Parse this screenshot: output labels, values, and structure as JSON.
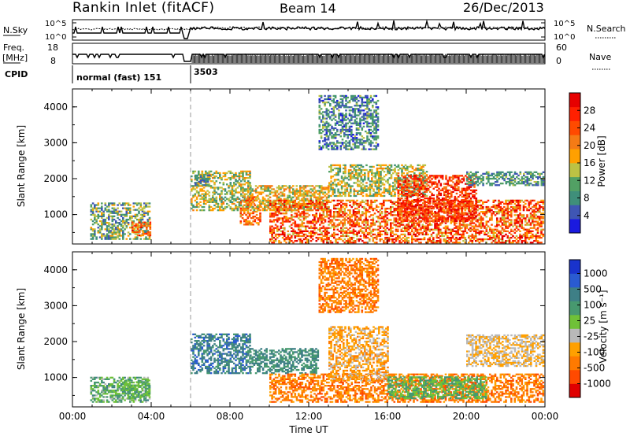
{
  "header": {
    "title": "Rankin Inlet (fitACF)",
    "beam": "Beam 14",
    "date": "26/Dec/2013"
  },
  "status_panels": {
    "nsky_label": "N.Sky",
    "nsky_ticks": [
      "10^5",
      "10^0"
    ],
    "nsearch_label": "N.Search",
    "nsearch_ticks": [
      "10^5",
      "10^0"
    ],
    "freq_label": "Freq.",
    "freq_unit": "[MHz]",
    "freq_ticks": [
      "18",
      "8"
    ],
    "nave_label": "Nave",
    "nave_ticks": [
      "60",
      "0"
    ],
    "cpid_label": "CPID",
    "cpid_segments": [
      {
        "label": "normal (fast) 151",
        "start_hour": 0,
        "end_hour": 6
      },
      {
        "label": "3503",
        "start_hour": 6,
        "end_hour": 24
      }
    ]
  },
  "chart_data": [
    {
      "type": "heatmap",
      "name": "power",
      "ylabel": "Slant Range [km]",
      "xlabel": "",
      "xlim": [
        0,
        24
      ],
      "ylim": [
        180,
        4500
      ],
      "yticks": [
        "1000",
        "2000",
        "3000",
        "4000"
      ],
      "yticks_values": [
        1000,
        2000,
        3000,
        4000
      ],
      "xticks": [
        "00:00",
        "04:00",
        "08:00",
        "12:00",
        "16:00",
        "20:00",
        "00:00"
      ],
      "colorbar": {
        "label": "Power [dB]",
        "ticks": [
          "4",
          "8",
          "12",
          "16",
          "20",
          "24",
          "28"
        ],
        "tick_values": [
          4,
          8,
          12,
          16,
          20,
          24,
          28
        ],
        "range": [
          0,
          32
        ],
        "colors": [
          "#1a1adf",
          "#3f56b4",
          "#3f8f7a",
          "#52a064",
          "#bcc244",
          "#ffa000",
          "#f57b15",
          "#ff4a00",
          "#ff2000",
          "#e60000"
        ]
      },
      "regions": [
        {
          "t": [
            0.9,
            3.9
          ],
          "r": [
            300,
            1300
          ],
          "v": [
            4,
            18
          ]
        },
        {
          "t": [
            3.0,
            3.9
          ],
          "r": [
            400,
            800
          ],
          "v": [
            14,
            30
          ]
        },
        {
          "t": [
            6.0,
            9.0
          ],
          "r": [
            1100,
            2200
          ],
          "v": [
            8,
            20
          ]
        },
        {
          "t": [
            6.2,
            7.0
          ],
          "r": [
            1800,
            2100
          ],
          "v": [
            4,
            10
          ]
        },
        {
          "t": [
            8.5,
            9.5
          ],
          "r": [
            700,
            1500
          ],
          "v": [
            14,
            28
          ]
        },
        {
          "t": [
            9.0,
            13.0
          ],
          "r": [
            1100,
            1800
          ],
          "v": [
            10,
            22
          ]
        },
        {
          "t": [
            10.0,
            23.9
          ],
          "r": [
            200,
            1400
          ],
          "v": [
            14,
            32
          ]
        },
        {
          "t": [
            13.0,
            18.0
          ],
          "r": [
            1500,
            2400
          ],
          "v": [
            8,
            20
          ]
        },
        {
          "t": [
            16.5,
            20.5
          ],
          "r": [
            800,
            2100
          ],
          "v": [
            20,
            32
          ]
        },
        {
          "t": [
            20.0,
            23.9
          ],
          "r": [
            1800,
            2200
          ],
          "v": [
            4,
            14
          ]
        },
        {
          "t": [
            12.5,
            15.5
          ],
          "r": [
            2800,
            4300
          ],
          "v": [
            2,
            14
          ]
        }
      ]
    },
    {
      "type": "heatmap",
      "name": "velocity",
      "ylabel": "Slant Range [km]",
      "xlabel": "Time UT",
      "xlim": [
        0,
        24
      ],
      "ylim": [
        180,
        4500
      ],
      "yticks": [
        "1000",
        "2000",
        "3000",
        "4000"
      ],
      "yticks_values": [
        1000,
        2000,
        3000,
        4000
      ],
      "xticks": [
        "00:00",
        "04:00",
        "08:00",
        "12:00",
        "16:00",
        "20:00",
        "00:00"
      ],
      "colorbar": {
        "label": "Velocity [m s⁻¹]",
        "ticks": [
          "1000",
          "500",
          "100",
          "25",
          "-25",
          "-100",
          "-500",
          "-1000"
        ],
        "colors": [
          "#1933cc",
          "#2a5bd1",
          "#3e7f86",
          "#47996f",
          "#6fc138",
          "#b9b9b9",
          "#ffa000",
          "#ff7a00",
          "#ff4a00",
          "#e00000"
        ]
      },
      "regions": [
        {
          "t": [
            0.9,
            3.9
          ],
          "r": [
            300,
            1000
          ],
          "v": [
            2,
            5
          ]
        },
        {
          "t": [
            2.5,
            3.9
          ],
          "r": [
            400,
            900
          ],
          "v": [
            3,
            4
          ]
        },
        {
          "t": [
            6.0,
            9.0
          ],
          "r": [
            1100,
            2200
          ],
          "v": [
            1,
            3
          ]
        },
        {
          "t": [
            9.0,
            12.5
          ],
          "r": [
            1100,
            1800
          ],
          "v": [
            2,
            3
          ]
        },
        {
          "t": [
            10.0,
            23.9
          ],
          "r": [
            300,
            1100
          ],
          "v": [
            6,
            8
          ]
        },
        {
          "t": [
            13.0,
            16.0
          ],
          "r": [
            900,
            2400
          ],
          "v": [
            5,
            7
          ]
        },
        {
          "t": [
            16.0,
            21.0
          ],
          "r": [
            400,
            1000
          ],
          "v": [
            3,
            4
          ]
        },
        {
          "t": [
            20.0,
            23.9
          ],
          "r": [
            1300,
            2200
          ],
          "v": [
            5,
            6
          ]
        },
        {
          "t": [
            12.5,
            15.5
          ],
          "r": [
            2800,
            4300
          ],
          "v": [
            6,
            8
          ]
        }
      ]
    }
  ]
}
